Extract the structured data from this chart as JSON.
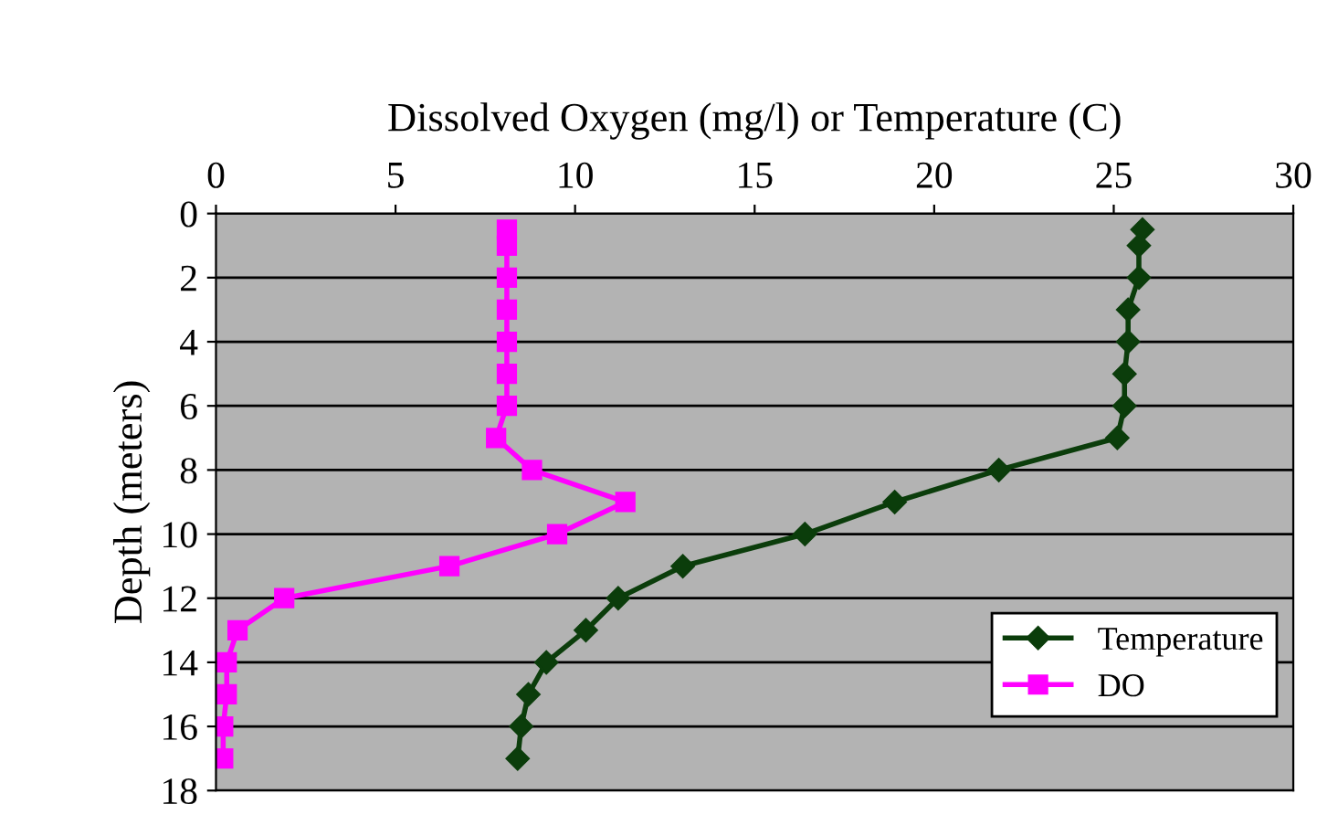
{
  "chart_data": {
    "type": "line",
    "xlabel": "Dissolved Oxygen (mg/l) or Temperature (C)",
    "ylabel": "Depth (meters)",
    "xlim": [
      0,
      30
    ],
    "xticks": [
      0,
      5,
      10,
      15,
      20,
      25,
      30
    ],
    "ylim": [
      18,
      0
    ],
    "yticks": [
      0,
      2,
      4,
      6,
      8,
      10,
      12,
      14,
      16,
      18
    ],
    "grid": "y",
    "legend": "bottom right",
    "series": [
      {
        "name": "Temperature",
        "color": "#0b3d0b",
        "marker": "diamond",
        "x": [
          25.8,
          25.7,
          25.7,
          25.4,
          25.4,
          25.3,
          25.3,
          25.1,
          21.8,
          18.9,
          16.4,
          13.0,
          11.2,
          10.3,
          9.2,
          8.7,
          8.5,
          8.4
        ],
        "values": [
          0.5,
          1,
          2,
          3,
          4,
          5,
          6,
          7,
          8,
          9,
          10,
          11,
          12,
          13,
          14,
          15,
          16,
          17
        ]
      },
      {
        "name": "DO",
        "color": "#ff00ff",
        "marker": "square",
        "x": [
          8.1,
          8.1,
          8.1,
          8.1,
          8.1,
          8.1,
          8.1,
          7.8,
          8.8,
          11.4,
          9.5,
          6.5,
          1.9,
          0.6,
          0.3,
          0.3,
          0.2,
          0.2
        ],
        "values": [
          0.5,
          1,
          2,
          3,
          4,
          5,
          6,
          7,
          8,
          9,
          10,
          11,
          12,
          13,
          14,
          15,
          16,
          17
        ]
      }
    ]
  }
}
